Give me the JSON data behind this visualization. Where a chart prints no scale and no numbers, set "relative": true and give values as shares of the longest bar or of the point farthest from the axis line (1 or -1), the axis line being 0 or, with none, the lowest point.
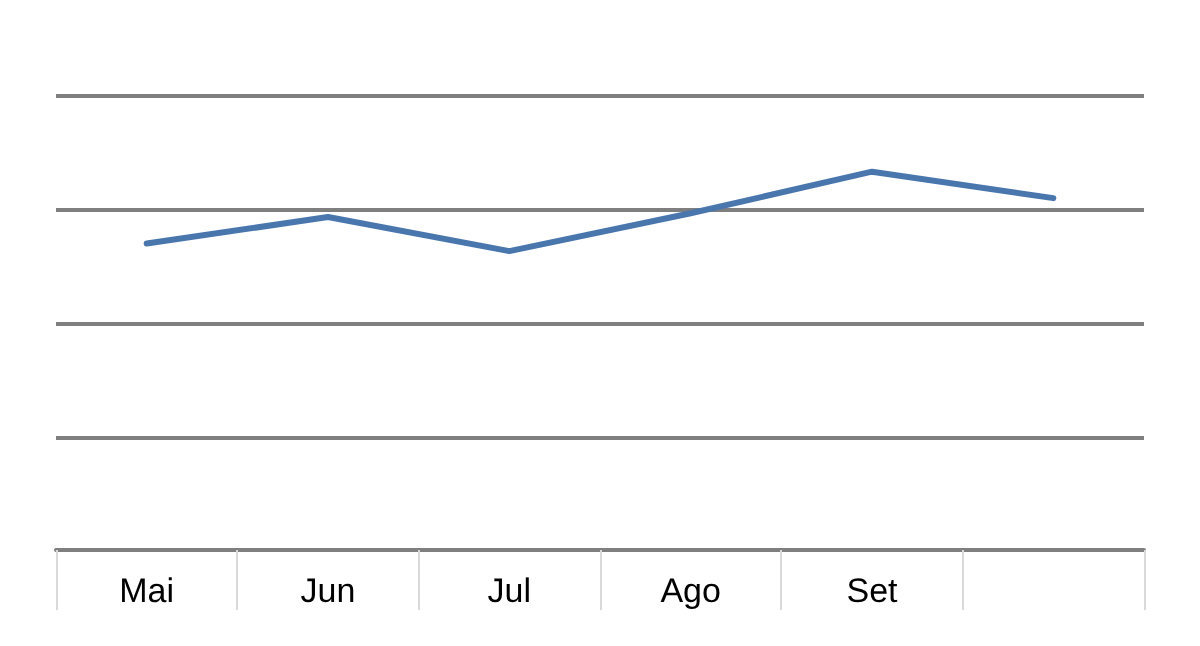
{
  "chart_data": {
    "type": "line",
    "relative": true,
    "categories": [
      "Mai",
      "Jun",
      "Jul",
      "Ago",
      "Set",
      null
    ],
    "series": [
      {
        "color": "#4a76ae",
        "values": [
          0.81,
          0.88,
          0.79,
          0.89,
          1,
          0.93
        ]
      }
    ],
    "grid": "y",
    "marker": "none",
    "line_style": "solid"
  }
}
